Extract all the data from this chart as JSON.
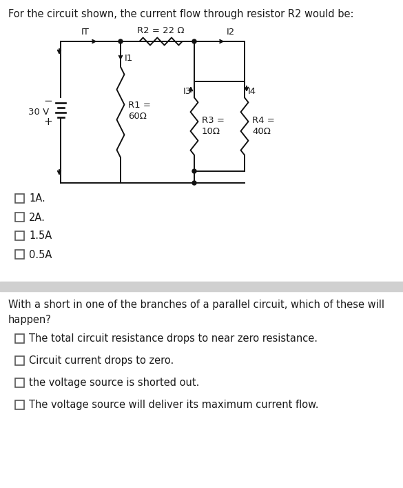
{
  "title1": "For the circuit shown, the current flow through resistor R2 would be:",
  "question2": "With a short in one of the branches of a parallel circuit, which of these will\nhappen?",
  "options1": [
    "1A.",
    "2A.",
    "1.5A",
    "0.5A"
  ],
  "options2": [
    "The total circuit resistance drops to near zero resistance.",
    "Circuit current drops to zero.",
    "the voltage source is shorted out.",
    "The voltage source will deliver its maximum current flow."
  ],
  "bg_color": "#ffffff",
  "text_color": "#1a1a1a",
  "separator_color": "#d0d0d0",
  "circuit_labels": {
    "IT": "IT",
    "R2": "R2 = 22 Ω",
    "I2": "I2",
    "I1": "I1",
    "I3": "I3",
    "I4": "I4",
    "R1_line1": "R1 =",
    "R1_line2": "60Ω",
    "R3_line1": "R3 =",
    "R3_line2": "10Ω",
    "R4_line1": "R4 =",
    "R4_line2": "40Ω",
    "V": "30 V"
  }
}
